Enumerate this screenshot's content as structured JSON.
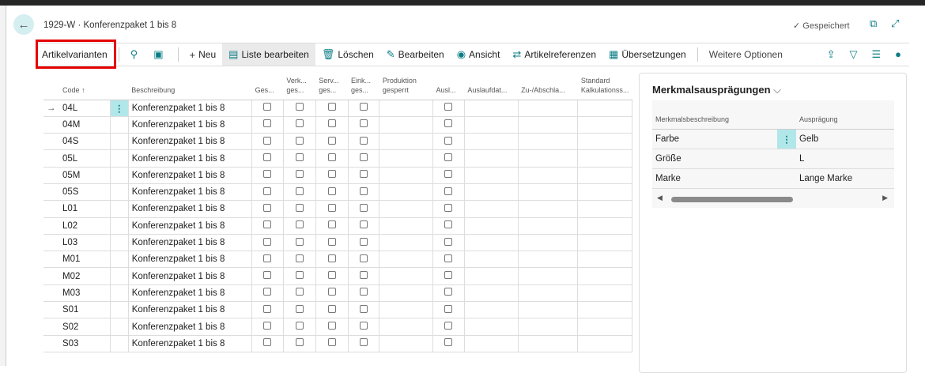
{
  "header": {
    "title": "1929-W · Konferenzpaket 1 bis 8",
    "saved": "✓ Gespeichert"
  },
  "actions": {
    "tab": "Artikelvarianten",
    "new": "Neu",
    "edit_list": "Liste bearbeiten",
    "delete": "Löschen",
    "edit": "Bearbeiten",
    "view": "Ansicht",
    "references": "Artikelreferenzen",
    "translations": "Übersetzungen",
    "more": "Weitere Optionen"
  },
  "columns": [
    "Code ↑",
    "",
    "Beschreibung",
    "Ges...",
    "Verk... ges...",
    "Serv... ges...",
    "Eink... ges...",
    "Produktion gesperrt",
    "Ausl...",
    "Auslaufdat...",
    "Zu-/Abschla...",
    "Standard Kalkulationss..."
  ],
  "rows": [
    {
      "code": "04L",
      "desc": "Konferenzpaket 1 bis 8"
    },
    {
      "code": "04M",
      "desc": "Konferenzpaket 1 bis 8"
    },
    {
      "code": "04S",
      "desc": "Konferenzpaket 1 bis 8"
    },
    {
      "code": "05L",
      "desc": "Konferenzpaket 1 bis 8"
    },
    {
      "code": "05M",
      "desc": "Konferenzpaket 1 bis 8"
    },
    {
      "code": "05S",
      "desc": "Konferenzpaket 1 bis 8"
    },
    {
      "code": "L01",
      "desc": "Konferenzpaket 1 bis 8"
    },
    {
      "code": "L02",
      "desc": "Konferenzpaket 1 bis 8"
    },
    {
      "code": "L03",
      "desc": "Konferenzpaket 1 bis 8"
    },
    {
      "code": "M01",
      "desc": "Konferenzpaket 1 bis 8"
    },
    {
      "code": "M02",
      "desc": "Konferenzpaket 1 bis 8"
    },
    {
      "code": "M03",
      "desc": "Konferenzpaket 1 bis 8"
    },
    {
      "code": "S01",
      "desc": "Konferenzpaket 1 bis 8"
    },
    {
      "code": "S02",
      "desc": "Konferenzpaket 1 bis 8"
    },
    {
      "code": "S03",
      "desc": "Konferenzpaket 1 bis 8"
    }
  ],
  "panel": {
    "title": "Merkmalsausprägungen",
    "col1": "Merkmalsbeschreibung",
    "col2": "Ausprägung",
    "rows": [
      {
        "name": "Farbe",
        "value": "Gelb"
      },
      {
        "name": "Größe",
        "value": "L"
      },
      {
        "name": "Marke",
        "value": "Lange Marke"
      }
    ]
  },
  "colors": {
    "accent": "#0a7d86",
    "highlight": "#b2e7ea",
    "red_box": "#e50000"
  }
}
